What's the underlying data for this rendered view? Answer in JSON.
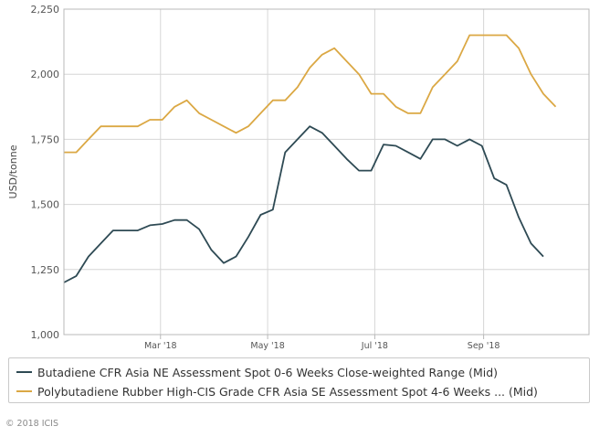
{
  "chart_data": {
    "type": "line",
    "ylabel": "USD/tonne",
    "ylim": [
      1000,
      2250
    ],
    "yticks": [
      1000,
      1250,
      1500,
      1750,
      2000,
      2250
    ],
    "ytick_labels": [
      "1,000",
      "1,250",
      "1,500",
      "1,750",
      "2,000",
      "2,250"
    ],
    "xlim": [
      "2018-01-05",
      "2018-10-31"
    ],
    "xticks": [
      "2018-03-01",
      "2018-05-01",
      "2018-07-01",
      "2018-09-01"
    ],
    "xtick_labels": [
      "Mar '18",
      "May '18",
      "Jul '18",
      "Sep '18"
    ],
    "grid": true,
    "legend_position": "bottom",
    "series": [
      {
        "name": "Butadiene CFR Asia NE Assessment Spot 0-6 Weeks Close-weighted Range (Mid)",
        "color": "#2e4a54",
        "points": [
          [
            "2018-01-05",
            1200
          ],
          [
            "2018-01-12",
            1225
          ],
          [
            "2018-01-19",
            1300
          ],
          [
            "2018-01-26",
            1350
          ],
          [
            "2018-02-02",
            1400
          ],
          [
            "2018-02-09",
            1400
          ],
          [
            "2018-02-16",
            1400
          ],
          [
            "2018-02-23",
            1420
          ],
          [
            "2018-03-02",
            1425
          ],
          [
            "2018-03-09",
            1440
          ],
          [
            "2018-03-16",
            1440
          ],
          [
            "2018-03-23",
            1405
          ],
          [
            "2018-03-30",
            1325
          ],
          [
            "2018-04-06",
            1275
          ],
          [
            "2018-04-13",
            1300
          ],
          [
            "2018-04-20",
            1375
          ],
          [
            "2018-04-27",
            1460
          ],
          [
            "2018-05-04",
            1480
          ],
          [
            "2018-05-11",
            1700
          ],
          [
            "2018-05-18",
            1750
          ],
          [
            "2018-05-25",
            1800
          ],
          [
            "2018-06-01",
            1775
          ],
          [
            "2018-06-08",
            1725
          ],
          [
            "2018-06-15",
            1675
          ],
          [
            "2018-06-22",
            1630
          ],
          [
            "2018-06-29",
            1630
          ],
          [
            "2018-07-06",
            1730
          ],
          [
            "2018-07-13",
            1725
          ],
          [
            "2018-07-20",
            1700
          ],
          [
            "2018-07-27",
            1675
          ],
          [
            "2018-08-03",
            1750
          ],
          [
            "2018-08-10",
            1750
          ],
          [
            "2018-08-17",
            1725
          ],
          [
            "2018-08-24",
            1750
          ],
          [
            "2018-08-31",
            1725
          ],
          [
            "2018-09-07",
            1600
          ],
          [
            "2018-09-14",
            1575
          ],
          [
            "2018-09-21",
            1450
          ],
          [
            "2018-09-28",
            1350
          ],
          [
            "2018-10-05",
            1300
          ]
        ]
      },
      {
        "name": "Polybutadiene Rubber High-CIS Grade CFR Asia SE Assessment Spot 4-6 Weeks ... (Mid)",
        "color": "#dba844",
        "points": [
          [
            "2018-01-05",
            1700
          ],
          [
            "2018-01-12",
            1700
          ],
          [
            "2018-01-19",
            1750
          ],
          [
            "2018-01-26",
            1800
          ],
          [
            "2018-02-02",
            1800
          ],
          [
            "2018-02-09",
            1800
          ],
          [
            "2018-02-16",
            1800
          ],
          [
            "2018-02-23",
            1825
          ],
          [
            "2018-03-02",
            1825
          ],
          [
            "2018-03-09",
            1875
          ],
          [
            "2018-03-16",
            1900
          ],
          [
            "2018-03-23",
            1850
          ],
          [
            "2018-03-30",
            1825
          ],
          [
            "2018-04-06",
            1800
          ],
          [
            "2018-04-13",
            1775
          ],
          [
            "2018-04-20",
            1800
          ],
          [
            "2018-04-27",
            1850
          ],
          [
            "2018-05-04",
            1900
          ],
          [
            "2018-05-11",
            1900
          ],
          [
            "2018-05-18",
            1950
          ],
          [
            "2018-05-25",
            2025
          ],
          [
            "2018-06-01",
            2075
          ],
          [
            "2018-06-08",
            2100
          ],
          [
            "2018-06-15",
            2050
          ],
          [
            "2018-06-22",
            2000
          ],
          [
            "2018-06-29",
            1925
          ],
          [
            "2018-07-06",
            1925
          ],
          [
            "2018-07-13",
            1875
          ],
          [
            "2018-07-20",
            1850
          ],
          [
            "2018-07-27",
            1850
          ],
          [
            "2018-08-03",
            1950
          ],
          [
            "2018-08-10",
            2000
          ],
          [
            "2018-08-17",
            2050
          ],
          [
            "2018-08-24",
            2150
          ],
          [
            "2018-08-31",
            2150
          ],
          [
            "2018-09-07",
            2150
          ],
          [
            "2018-09-14",
            2150
          ],
          [
            "2018-09-21",
            2100
          ],
          [
            "2018-09-28",
            2000
          ],
          [
            "2018-10-05",
            1925
          ],
          [
            "2018-10-12",
            1875
          ]
        ]
      }
    ]
  },
  "copyright": "© 2018 ICIS"
}
